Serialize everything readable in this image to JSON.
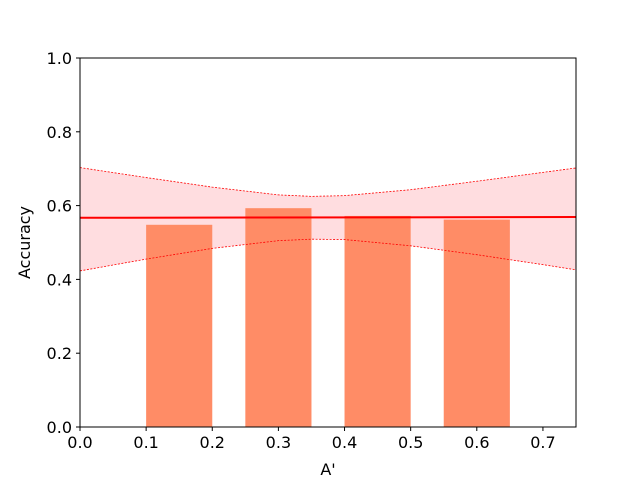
{
  "chart_data": {
    "type": "bar",
    "xlabel": "A'",
    "ylabel": "Accuracy",
    "xlim": [
      0.0,
      0.75
    ],
    "ylim": [
      0.0,
      1.0
    ],
    "x_ticks": [
      "0.0",
      "0.1",
      "0.2",
      "0.3",
      "0.4",
      "0.5",
      "0.6",
      "0.7"
    ],
    "y_ticks": [
      "0.0",
      "0.2",
      "0.4",
      "0.6",
      "0.8",
      "1.0"
    ],
    "grid": false,
    "bars": [
      {
        "x_start": 0.1,
        "x_end": 0.2,
        "value": 0.548
      },
      {
        "x_start": 0.25,
        "x_end": 0.35,
        "value": 0.593
      },
      {
        "x_start": 0.4,
        "x_end": 0.5,
        "value": 0.572
      },
      {
        "x_start": 0.55,
        "x_end": 0.65,
        "value": 0.562
      }
    ],
    "bar_color": "#ff8c66",
    "fit_line": {
      "x": [
        0.0,
        0.75
      ],
      "y": [
        0.567,
        0.569
      ],
      "color": "#ff0000"
    },
    "confidence_band": {
      "x": [
        0.0,
        0.1,
        0.2,
        0.3,
        0.35,
        0.4,
        0.5,
        0.6,
        0.7,
        0.75
      ],
      "upper": [
        0.703,
        0.676,
        0.65,
        0.629,
        0.625,
        0.627,
        0.643,
        0.666,
        0.69,
        0.702
      ],
      "lower": [
        0.423,
        0.455,
        0.484,
        0.505,
        0.509,
        0.508,
        0.491,
        0.467,
        0.44,
        0.426
      ],
      "fill": "#ffdde0",
      "edge": "#ff0000"
    }
  }
}
